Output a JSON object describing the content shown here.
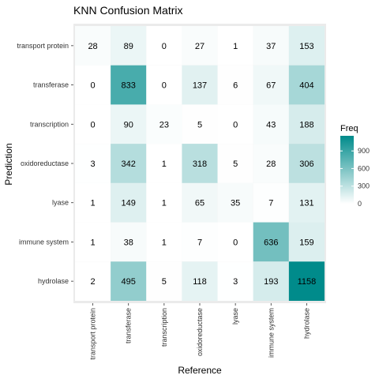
{
  "chart_data": {
    "type": "heatmap",
    "title": "KNN Confusion Matrix",
    "xlabel": "Reference",
    "ylabel": "Prediction",
    "x_categories": [
      "transport protein",
      "transferase",
      "transcription",
      "oxidoreductase",
      "lyase",
      "immune system",
      "hydrolase"
    ],
    "y_categories": [
      "transport protein",
      "transferase",
      "transcription",
      "oxidoreductase",
      "lyase",
      "immune system",
      "hydrolase"
    ],
    "values": [
      [
        28,
        89,
        0,
        27,
        1,
        37,
        153
      ],
      [
        0,
        833,
        0,
        137,
        6,
        67,
        404
      ],
      [
        0,
        90,
        23,
        5,
        0,
        43,
        188
      ],
      [
        3,
        342,
        1,
        318,
        5,
        28,
        306
      ],
      [
        1,
        149,
        1,
        65,
        35,
        7,
        131
      ],
      [
        1,
        38,
        1,
        7,
        0,
        636,
        159
      ],
      [
        2,
        495,
        5,
        118,
        3,
        193,
        1158
      ]
    ],
    "legend": {
      "title": "Freq",
      "ticks": [
        0,
        300,
        600,
        900
      ],
      "range": [
        0,
        1158
      ],
      "low_color": "#ffffff",
      "high_color": "#008b8b"
    },
    "panel_color": "#ebebeb"
  }
}
